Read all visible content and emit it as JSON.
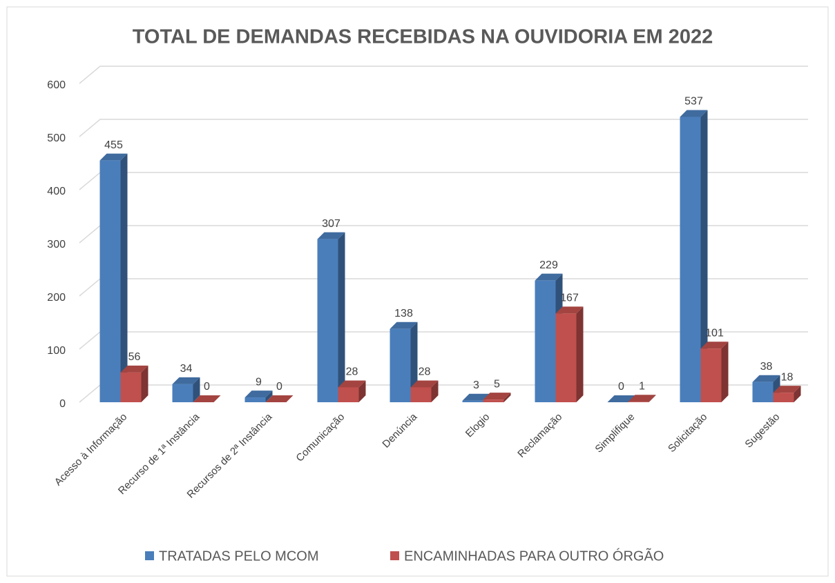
{
  "chart_data": {
    "type": "bar3d",
    "title": "TOTAL DE DEMANDAS RECEBIDAS NA OUVIDORIA EM 2022",
    "categories": [
      "Acesso à Informação",
      "Recurso de 1ª Instância",
      "Recursos de 2ª Instância",
      "Comunicação",
      "Denúncia",
      "Elogio",
      "Reclamação",
      "Simplifique",
      "Solicitação",
      "Sugestão"
    ],
    "series": [
      {
        "name": "TRATADAS PELO MCOM",
        "color": "#4a7ebb",
        "values": [
          455,
          34,
          9,
          307,
          138,
          3,
          229,
          0,
          537,
          38
        ]
      },
      {
        "name": "ENCAMINHADAS PARA OUTRO ÓRGÃO",
        "color": "#c0504d",
        "values": [
          56,
          0,
          0,
          28,
          28,
          5,
          167,
          1,
          101,
          18
        ]
      }
    ],
    "ylim": [
      0,
      600
    ],
    "yticks": [
      0,
      100,
      200,
      300,
      400,
      500,
      600
    ],
    "grid": true,
    "legend": "bottom"
  }
}
